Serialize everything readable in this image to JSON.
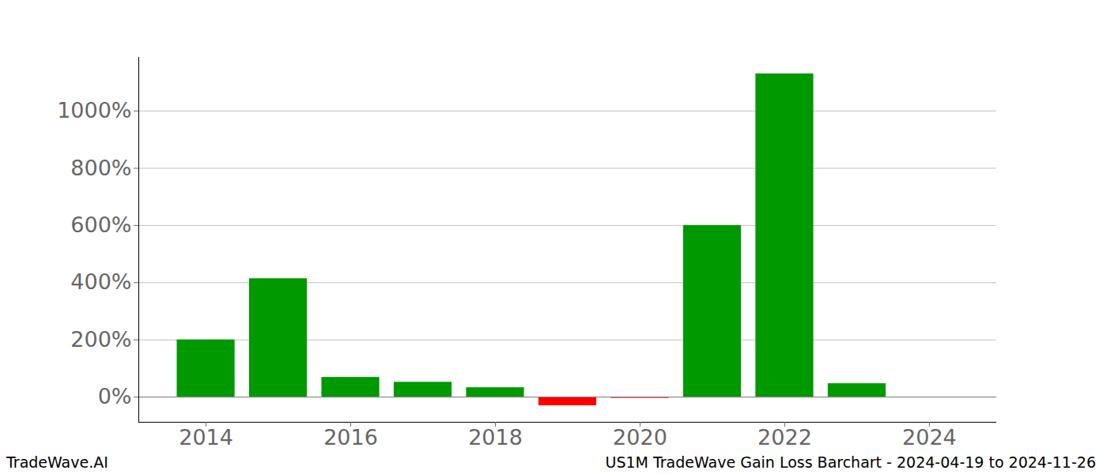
{
  "chart_data": {
    "type": "bar",
    "title": "US1M TradeWave Gain Loss Barchart - 2024-04-19 to 2024-11-26",
    "source": "TradeWave.AI",
    "x": [
      2014,
      2015,
      2016,
      2017,
      2018,
      2019,
      2020,
      2021,
      2022,
      2023
    ],
    "values": [
      200,
      414,
      69,
      52,
      33,
      -30,
      -4,
      600,
      1130,
      47
    ],
    "colors": [
      "#009900",
      "#009900",
      "#009900",
      "#009900",
      "#009900",
      "#ff0000",
      "#ff0000",
      "#009900",
      "#009900",
      "#009900"
    ],
    "xlim": [
      2013.07,
      2024.93
    ],
    "xticks": [
      2014,
      2016,
      2018,
      2020,
      2022,
      2024
    ],
    "ylim": [
      -88,
      1188
    ],
    "yticks": [
      {
        "value": 0,
        "label": "0%"
      },
      {
        "value": 200,
        "label": "200%"
      },
      {
        "value": 400,
        "label": "400%"
      },
      {
        "value": 600,
        "label": "600%"
      },
      {
        "value": 800,
        "label": "800%"
      },
      {
        "value": 1000,
        "label": "1000%"
      }
    ],
    "grid": true
  }
}
